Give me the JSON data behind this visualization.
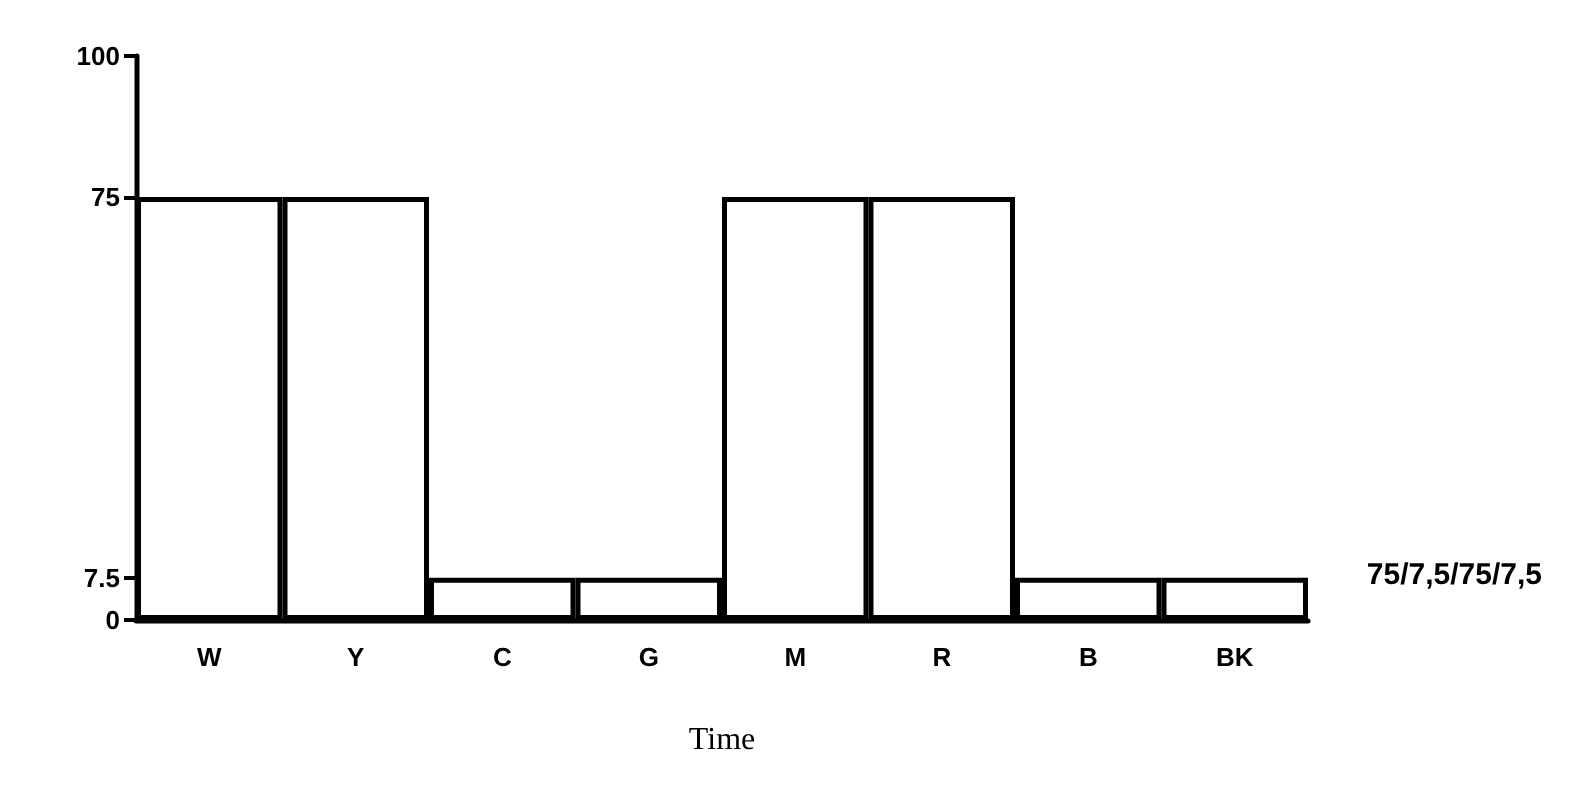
{
  "chart_data": {
    "type": "bar",
    "xlabel": "Time",
    "categories": [
      "W",
      "Y",
      "C",
      "G",
      "M",
      "R",
      "B",
      "BK"
    ],
    "values": [
      75,
      75,
      7.5,
      7.5,
      75,
      75,
      7.5,
      7.5
    ],
    "color": "#000000",
    "ylim": [
      0,
      100
    ],
    "yticks": [
      0,
      7.5,
      75,
      100
    ],
    "annotations": [
      "75/7,5/75/7,5"
    ],
    "grid": false
  }
}
